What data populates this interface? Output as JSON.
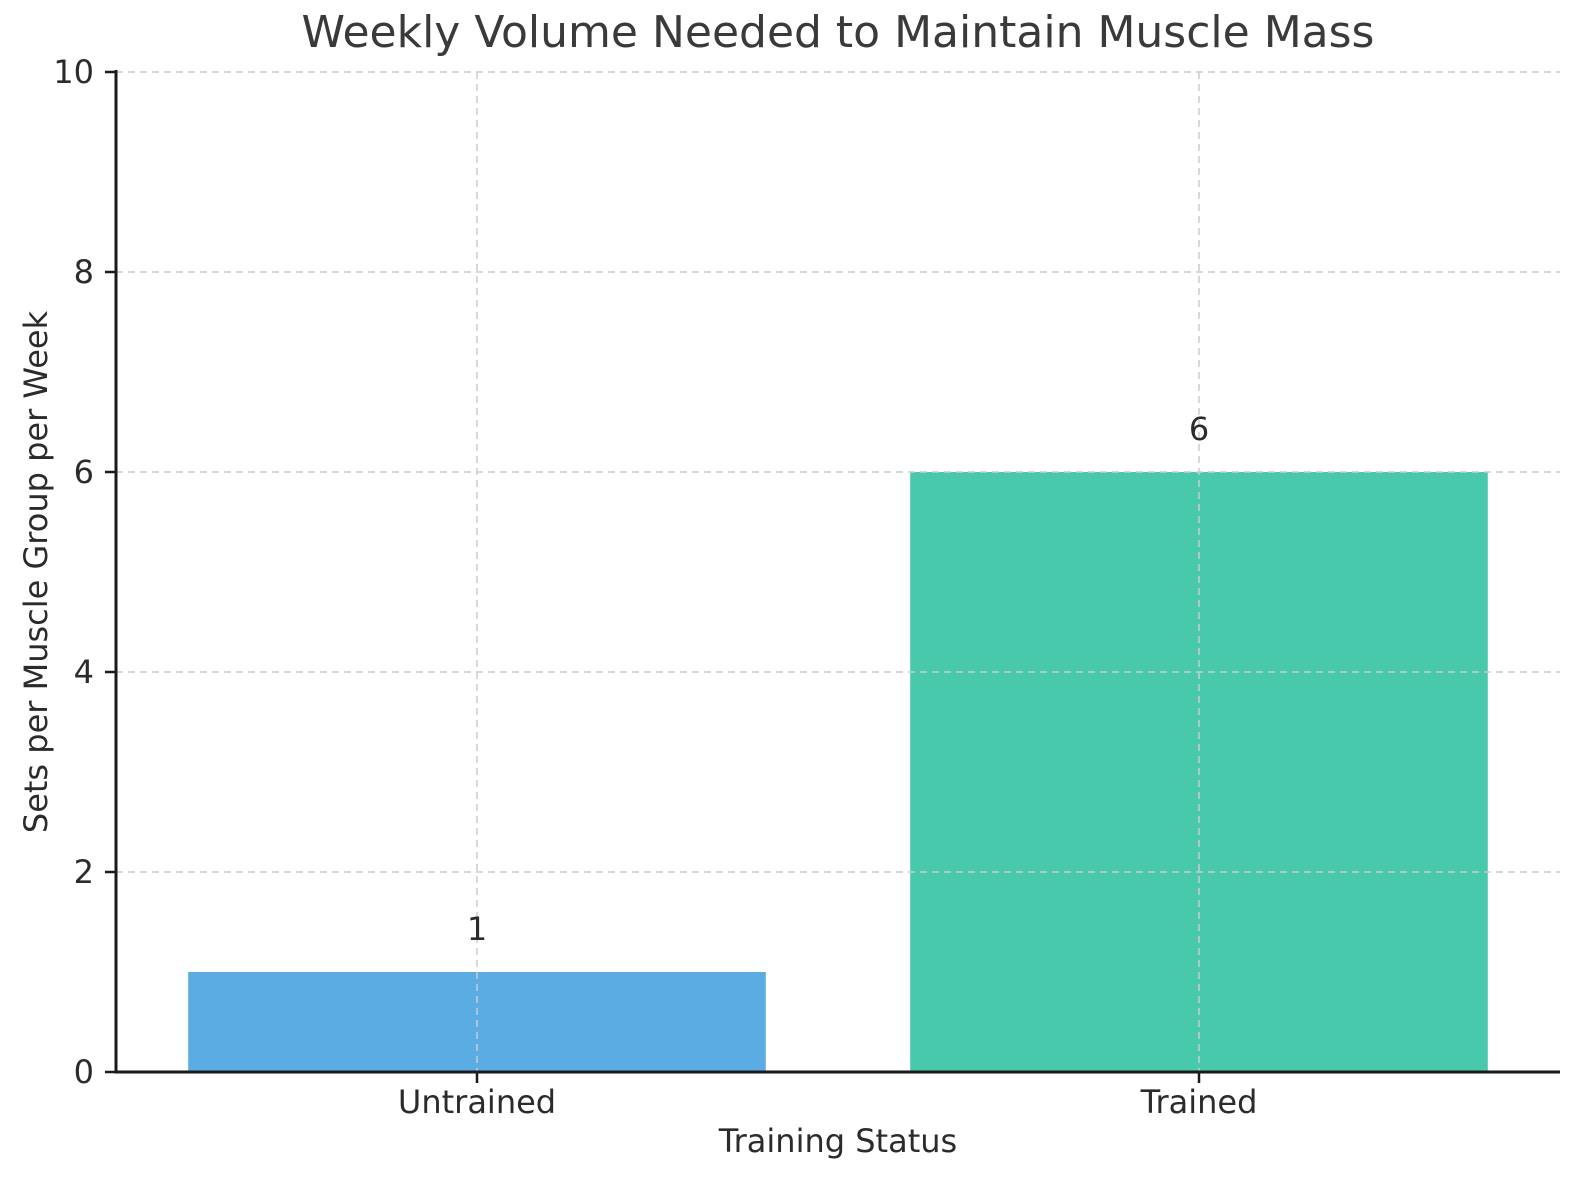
{
  "chart_data": {
    "type": "bar",
    "title": "Weekly Volume Needed to Maintain Muscle Mass",
    "xlabel": "Training Status",
    "ylabel": "Sets per Muscle Group per Week",
    "categories": [
      "Untrained",
      "Trained"
    ],
    "values": [
      1,
      6
    ],
    "value_labels": [
      "1",
      "6"
    ],
    "bar_colors": [
      "#5aace2",
      "#48c9ac"
    ],
    "ylim": [
      0,
      10
    ],
    "yticks": [
      0,
      2,
      4,
      6,
      8,
      10
    ],
    "ytick_labels": [
      "0",
      "2",
      "4",
      "6",
      "8",
      "10"
    ],
    "grid": {
      "visible": true,
      "style": "dashed",
      "color": "#cbcbcb",
      "drawn_above_bars": true,
      "vertical_at_category_centers": true
    },
    "legend_position": "none",
    "colors": {
      "spine": "#1a1a1a",
      "tick_label": "#2b2b2b",
      "title": "#3a3a3a",
      "value_label": "#2b2b2b",
      "background": "#ffffff"
    }
  }
}
